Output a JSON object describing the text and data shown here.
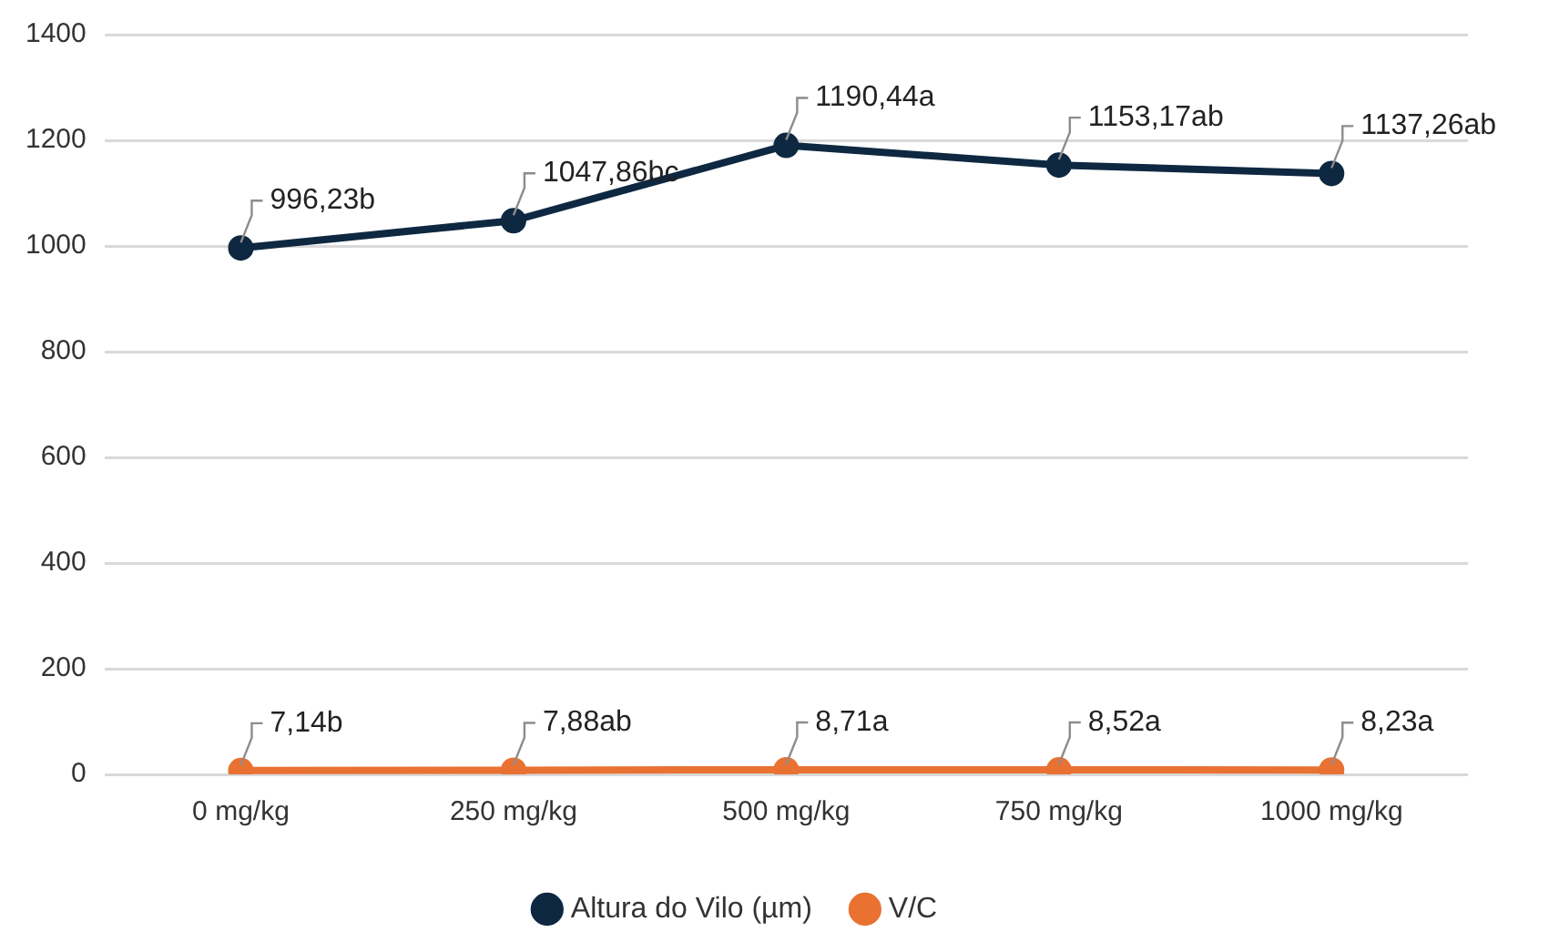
{
  "chart_data": {
    "type": "line",
    "categories": [
      "0 mg/kg",
      "250 mg/kg",
      "500 mg/kg",
      "750 mg/kg",
      "1000 mg/kg"
    ],
    "series": [
      {
        "name": "Altura do Vilo (µm)",
        "color": "#0e2841",
        "values": [
          996.23,
          1047.86,
          1190.44,
          1153.17,
          1137.26
        ],
        "value_labels": [
          "996,23b",
          "1047,86bc",
          "1190,44a",
          "1153,17ab",
          "1137,26ab"
        ]
      },
      {
        "name": "V/C",
        "color": "#e97132",
        "values": [
          7.14,
          7.88,
          8.71,
          8.52,
          8.23
        ],
        "value_labels": [
          "7,14b",
          "7,88ab",
          "8,71a",
          "8,52a",
          "8,23a"
        ]
      }
    ],
    "ylim": [
      0,
      1400
    ],
    "yticks": [
      0,
      200,
      400,
      600,
      800,
      1000,
      1200,
      1400
    ],
    "grid": "y",
    "legend": "bottom",
    "marker": "circle",
    "line_style": "solid"
  }
}
